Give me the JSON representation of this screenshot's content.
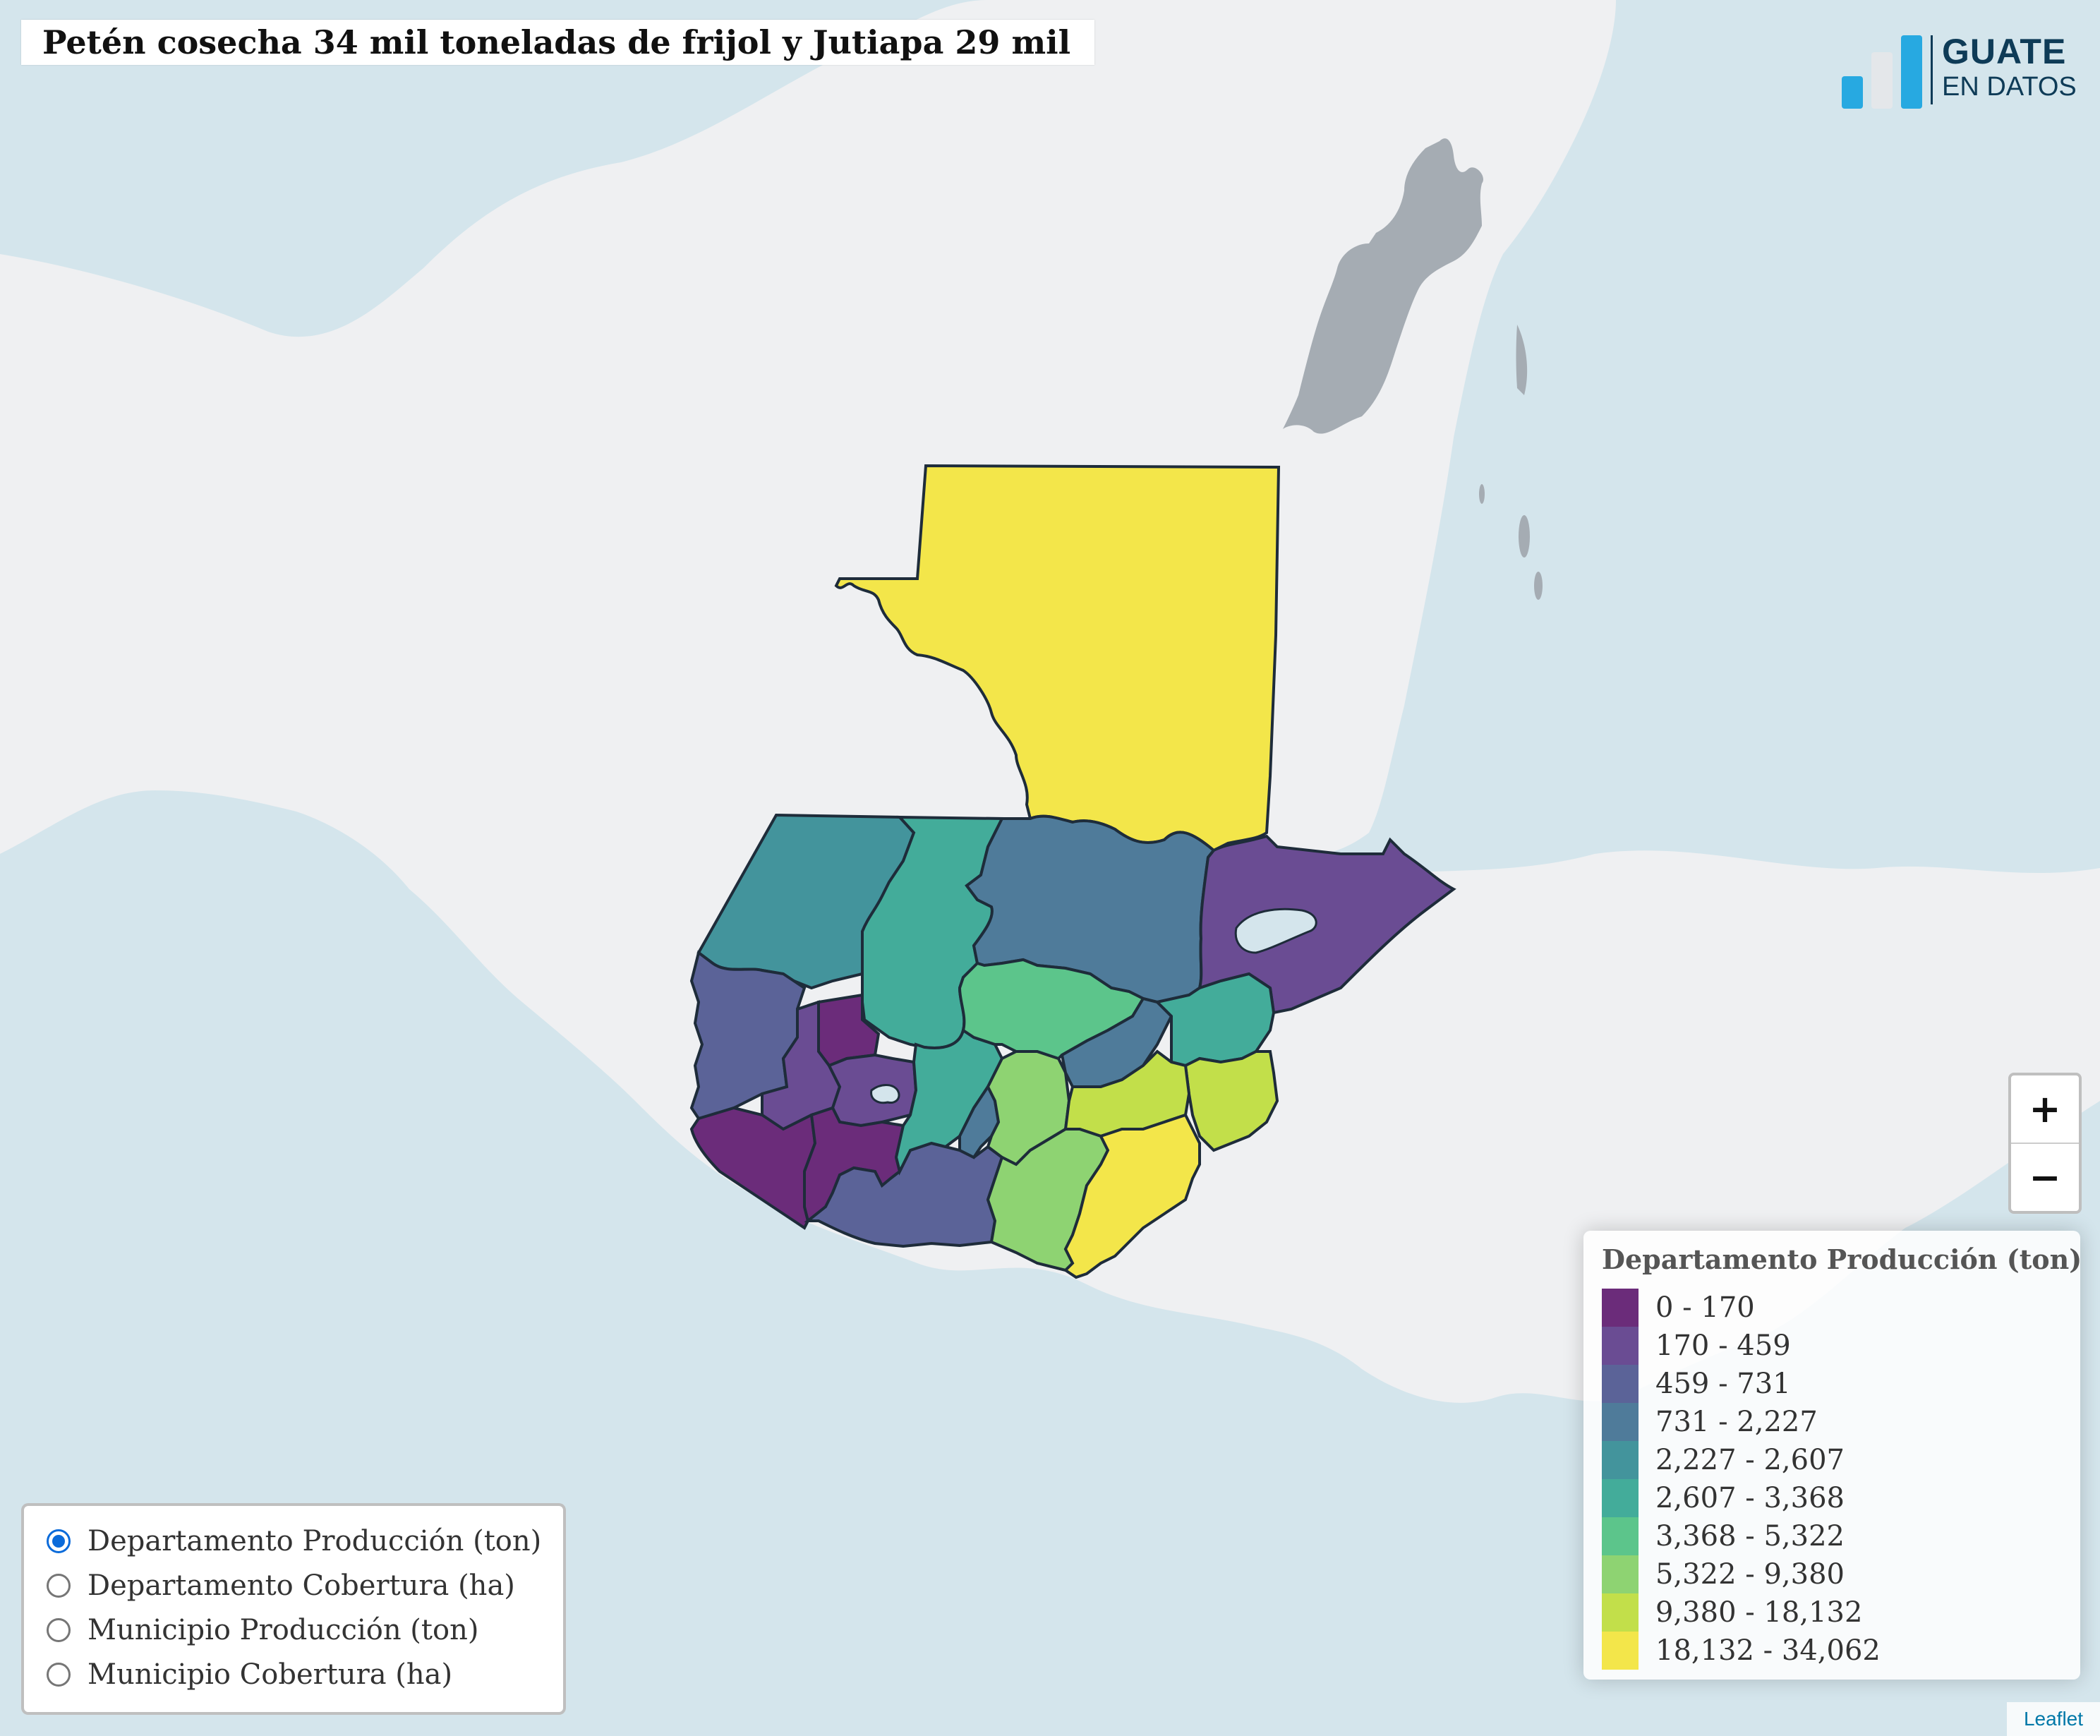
{
  "title": "Petén cosecha 34 mil toneladas de frijol y Jutiapa 29 mil",
  "logo": {
    "line1": "GUATE",
    "line2": "EN DATOS"
  },
  "zoom": {
    "in_label": "+",
    "out_label": "−"
  },
  "legend": {
    "title": "Departamento Producción (ton)",
    "items": [
      {
        "label": "0 - 170",
        "color": "#6b2c7a"
      },
      {
        "label": "170 - 459",
        "color": "#6a4c93"
      },
      {
        "label": "459 - 731",
        "color": "#5b6398"
      },
      {
        "label": "731 - 2,227",
        "color": "#4f7b9a"
      },
      {
        "label": "2,227 - 2,607",
        "color": "#43949c"
      },
      {
        "label": "2,607 - 3,368",
        "color": "#43ac9a"
      },
      {
        "label": "3,368 - 5,322",
        "color": "#5cc58b"
      },
      {
        "label": "5,322 - 9,380",
        "color": "#8ed372"
      },
      {
        "label": "9,380 - 18,132",
        "color": "#c2df4a"
      },
      {
        "label": "18,132 - 34,062",
        "color": "#f3e64a"
      }
    ]
  },
  "layers": [
    {
      "label": "Departamento Producción (ton)",
      "selected": true
    },
    {
      "label": "Departamento Cobertura (ha)",
      "selected": false
    },
    {
      "label": "Municipio Producción (ton)",
      "selected": false
    },
    {
      "label": "Municipio Cobertura (ha)",
      "selected": false
    }
  ],
  "attribution": "Leaflet",
  "colors": {
    "sea": "#d4e5ec",
    "land": "#eff0f2",
    "belize": "#a5acb3",
    "border": "#1e2c3a"
  }
}
